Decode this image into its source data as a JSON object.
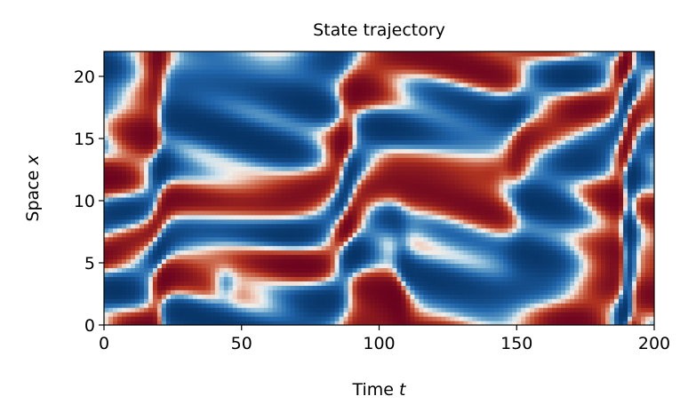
{
  "chart_data": {
    "type": "heatmap",
    "title": "State trajectory",
    "xlabel_prefix": "Time ",
    "xlabel_var": "t",
    "ylabel_prefix": "Space ",
    "ylabel_var": "x",
    "xlim": [
      0,
      200
    ],
    "ylim": [
      0,
      22
    ],
    "xticks": [
      0,
      50,
      100,
      150,
      200
    ],
    "yticks": [
      0,
      5,
      10,
      15,
      20
    ],
    "colormap": "diverging blue-white-red (RdBu_r)",
    "colors": {
      "negative": "#053061",
      "mid_negative": "#2166ac",
      "neutral": "#f0ece8",
      "mid_positive": "#d6604d",
      "positive": "#67001f"
    },
    "grid": false,
    "legend": "none",
    "field_note": "Kuramoto–Sivashinsky-like spatiotemporal pattern; values are not printed on the figure"
  }
}
